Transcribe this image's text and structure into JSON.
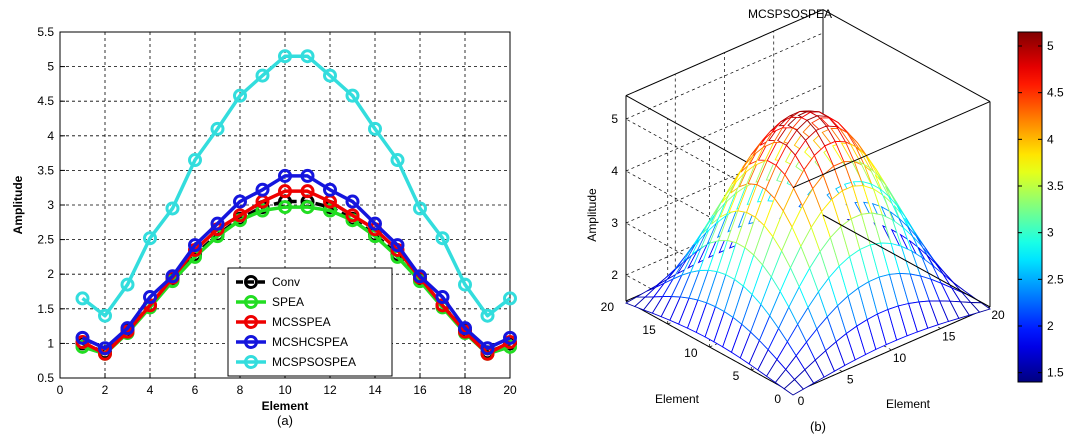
{
  "chart_data": [
    {
      "type": "line",
      "caption": "(a)",
      "xlabel": "Element",
      "ylabel": "Amplitude",
      "xlim": [
        0,
        20
      ],
      "ylim": [
        0.5,
        5.5
      ],
      "xticks": [
        "0",
        "2",
        "4",
        "6",
        "8",
        "10",
        "12",
        "14",
        "16",
        "18",
        "20"
      ],
      "yticks": [
        "0.5",
        "1",
        "1.5",
        "2",
        "2.5",
        "3",
        "3.5",
        "4",
        "4.5",
        "5",
        "5.5"
      ],
      "grid": true,
      "legend_position": "bottom-center",
      "x": [
        1,
        2,
        3,
        4,
        5,
        6,
        7,
        8,
        9,
        10,
        11,
        12,
        13,
        14,
        15,
        16,
        17,
        18,
        19,
        20
      ],
      "series": [
        {
          "name": "Conv",
          "color": "#000000",
          "dashed": true,
          "values": [
            1.0,
            0.87,
            1.18,
            1.55,
            1.93,
            2.28,
            2.57,
            2.8,
            2.97,
            3.05,
            3.05,
            2.97,
            2.8,
            2.57,
            2.28,
            1.93,
            1.55,
            1.18,
            0.87,
            1.0
          ]
        },
        {
          "name": "SPEA",
          "color": "#22dd22",
          "dashed": false,
          "values": [
            0.95,
            0.85,
            1.15,
            1.52,
            1.9,
            2.25,
            2.55,
            2.78,
            2.92,
            2.97,
            2.97,
            2.92,
            2.78,
            2.55,
            2.25,
            1.9,
            1.52,
            1.15,
            0.85,
            0.95
          ]
        },
        {
          "name": "MCSSPEA",
          "color": "#ee0000",
          "dashed": false,
          "values": [
            1.02,
            0.85,
            1.17,
            1.55,
            1.95,
            2.35,
            2.65,
            2.85,
            3.05,
            3.2,
            3.2,
            3.05,
            2.85,
            2.65,
            2.35,
            1.95,
            1.55,
            1.17,
            0.85,
            1.02
          ]
        },
        {
          "name": "MCSHCSPEA",
          "color": "#1515dd",
          "dashed": false,
          "values": [
            1.08,
            0.93,
            1.22,
            1.67,
            1.97,
            2.42,
            2.73,
            3.05,
            3.22,
            3.42,
            3.42,
            3.22,
            3.05,
            2.73,
            2.42,
            1.97,
            1.67,
            1.22,
            0.93,
            1.08
          ]
        },
        {
          "name": "MCSPSOSPEA",
          "color": "#33dddd",
          "dashed": false,
          "values": [
            1.65,
            1.4,
            1.85,
            2.52,
            2.95,
            3.65,
            4.1,
            4.58,
            4.87,
            5.15,
            5.15,
            4.87,
            4.58,
            4.1,
            3.65,
            2.95,
            2.52,
            1.85,
            1.4,
            1.65
          ]
        }
      ]
    },
    {
      "type": "surface",
      "caption": "(b)",
      "title": "MCSPSOSPEA",
      "xlabel": "Element",
      "ylabel": "Element",
      "zlabel": "Amplitude",
      "x_range": [
        0,
        20
      ],
      "y_range": [
        0,
        20
      ],
      "z_range": [
        1.5,
        5.2
      ],
      "x_ticks": [
        "0",
        "5",
        "10",
        "15",
        "20"
      ],
      "y_ticks": [
        "0",
        "5",
        "10",
        "15",
        "20"
      ],
      "z_ticks": [
        "2",
        "3",
        "4",
        "5"
      ],
      "colorbar": {
        "range": [
          1.4,
          5.15
        ],
        "ticks": [
          "1.5",
          "2",
          "2.5",
          "3",
          "3.5",
          "4",
          "4.5",
          "5"
        ],
        "colormap": "jet",
        "position": "right"
      }
    }
  ]
}
